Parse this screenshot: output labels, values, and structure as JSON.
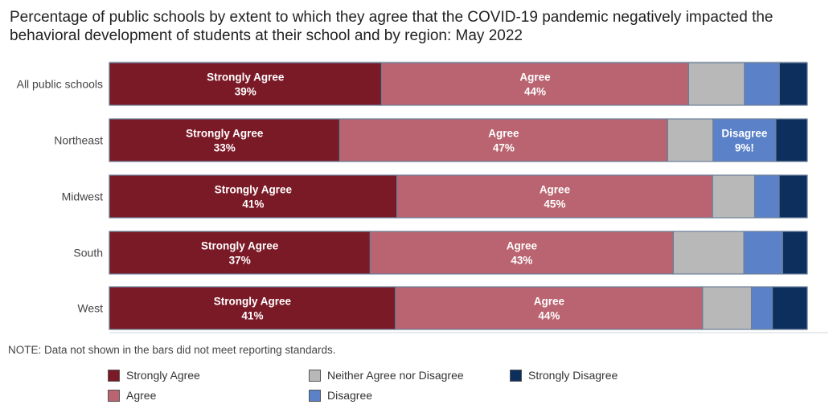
{
  "title": "Percentage of public schools by extent to which they agree that the COVID-19 pandemic negatively impacted the behavioral development of students at their school and by region: May 2022",
  "note": "NOTE: Data not shown in the bars did not meet reporting standards.",
  "colors": {
    "strongly_agree": "#7b1a27",
    "agree": "#b96470",
    "neither": "#b8b8b8",
    "disagree": "#5b82c9",
    "strongly_disagree": "#0c2f5e",
    "bar_border": "#6a7f99"
  },
  "chart_data": {
    "type": "bar",
    "orientation": "horizontal",
    "stacked": true,
    "percent_scale": true,
    "xlim": [
      0,
      100
    ],
    "legend_position": "bottom",
    "categories": [
      "All public schools",
      "Northeast",
      "Midwest",
      "South",
      "West"
    ],
    "series": [
      {
        "name": "Strongly Agree",
        "key": "strongly_agree",
        "values": [
          39,
          33,
          41,
          37,
          41
        ],
        "labels": [
          "39%",
          "33%",
          "41%",
          "37%",
          "41%"
        ]
      },
      {
        "name": "Agree",
        "key": "agree",
        "values": [
          44,
          47,
          45,
          43,
          44
        ],
        "labels": [
          "44%",
          "47%",
          "45%",
          "43%",
          "44%"
        ]
      },
      {
        "name": "Neither Agree nor Disagree",
        "key": "neither",
        "values": [
          8,
          6.5,
          6,
          10,
          7
        ],
        "labels": [
          null,
          null,
          null,
          null,
          null
        ]
      },
      {
        "name": "Disagree",
        "key": "disagree",
        "values": [
          5,
          9,
          3.5,
          5.5,
          3
        ],
        "labels": [
          null,
          "9%!",
          null,
          null,
          null
        ]
      },
      {
        "name": "Strongly Disagree",
        "key": "strongly_disagree",
        "values": [
          4,
          4.5,
          4,
          3.5,
          5
        ],
        "labels": [
          null,
          null,
          null,
          null,
          null
        ]
      }
    ]
  },
  "legend": [
    {
      "label": "Strongly Agree",
      "key": "strongly_agree"
    },
    {
      "label": "Agree",
      "key": "agree"
    },
    {
      "label": "Neither Agree nor Disagree",
      "key": "neither"
    },
    {
      "label": "Disagree",
      "key": "disagree"
    },
    {
      "label": "Strongly Disagree",
      "key": "strongly_disagree"
    }
  ]
}
